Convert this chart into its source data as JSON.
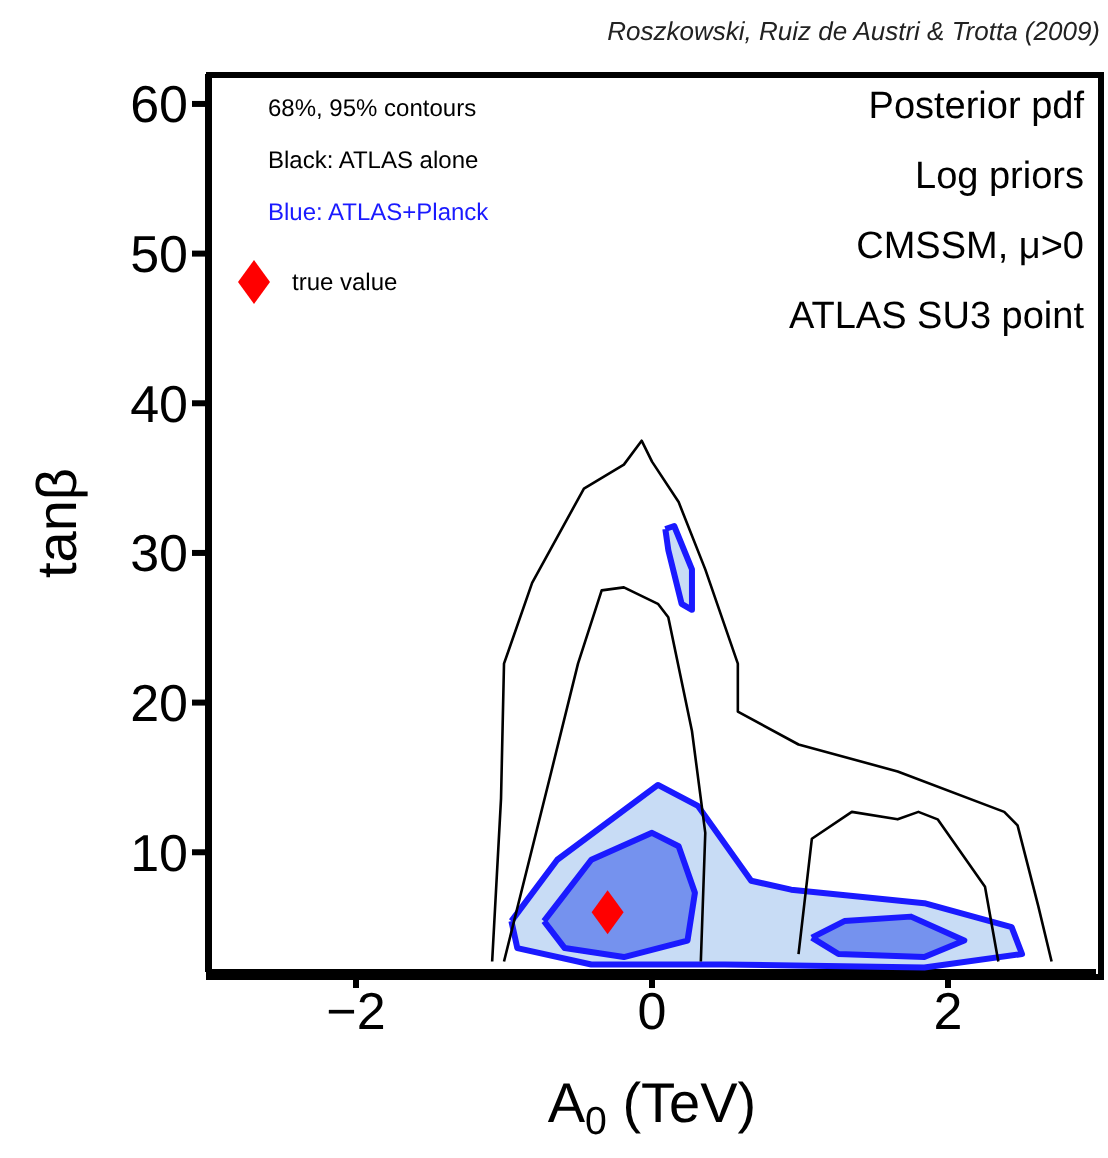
{
  "chart_data": {
    "type": "line",
    "xlabel": "A$_{0}$ (TeV)",
    "ylabel": "tanβ",
    "xlim": [
      -3,
      3
    ],
    "xticks": [
      {
        "value": -2,
        "label": "−2"
      },
      0,
      2
    ],
    "ylim": [
      2,
      62
    ],
    "yticks": [
      10,
      20,
      30,
      40,
      50,
      60
    ],
    "grid": false,
    "legend": "top left",
    "annotations": [
      "68%, 95% contours",
      "Black: ATLAS alone",
      "Blue: ATLAS+Planck",
      "Posterior pdf",
      "Log priors",
      "CMSSM, μ>0",
      "ATLAS SU3 point",
      "Roszkowski, Ruiz de Austri & Trotta (2009)"
    ],
    "series": [
      {
        "type": "area",
        "color": "#c8dcf5",
        "x": [
          -0.95,
          -0.64,
          0.04,
          0.31,
          0.67,
          0.94,
          1.84,
          2.43,
          2.5,
          1.84,
          0.49,
          -0.41,
          -0.91,
          -0.95
        ],
        "values": [
          5.4,
          9.5,
          14.5,
          13.1,
          8.1,
          7.5,
          6.6,
          5.0,
          3.2,
          2.3,
          2.5,
          2.5,
          3.6,
          5.4
        ]
      },
      {
        "type": "area",
        "color": "#c8dcf5",
        "x": [
          0.09,
          0.15,
          0.27,
          0.27,
          0.2,
          0.11,
          0.09
        ],
        "values": [
          31.6,
          31.8,
          28.9,
          26.2,
          26.6,
          30.2,
          31.6
        ]
      },
      {
        "type": "area",
        "color": "#7592ee",
        "x": [
          -0.73,
          -0.41,
          0,
          0.18,
          0.29,
          0.24,
          -0.19,
          -0.59,
          -0.73
        ],
        "values": [
          5.4,
          9.5,
          11.3,
          10.4,
          7.3,
          4.1,
          3.0,
          3.6,
          5.4
        ]
      },
      {
        "type": "area",
        "color": "#7592ee",
        "x": [
          1.08,
          1.3,
          1.75,
          2.11,
          1.84,
          1.26,
          1.08
        ],
        "values": [
          4.3,
          5.4,
          5.7,
          4.1,
          3.0,
          3.2,
          4.3
        ]
      },
      {
        "color": "#000000",
        "x": [
          -1.08,
          -1.02,
          -1.0,
          -0.81,
          -0.46,
          -0.19,
          -0.07,
          0,
          0.18,
          0.36,
          0.58,
          0.58,
          0.99,
          1.66,
          2.38,
          2.47,
          2.61,
          2.7
        ],
        "values": [
          2.7,
          13.6,
          22.6,
          28,
          34.3,
          35.9,
          37.5,
          36.1,
          33.4,
          28.9,
          22.6,
          19.4,
          17.2,
          15.4,
          12.7,
          11.8,
          6.4,
          2.7
        ]
      },
      {
        "color": "#000000",
        "x": [
          -1.0,
          -0.68,
          -0.5,
          -0.34,
          -0.19,
          0.04,
          0.11,
          0.27,
          0.36,
          0.33
        ],
        "values": [
          2.7,
          15.4,
          22.6,
          27.5,
          27.7,
          26.6,
          25.7,
          18.1,
          11.3,
          2.7
        ]
      },
      {
        "color": "#000000",
        "x": [
          0.99,
          1.08,
          1.35,
          1.66,
          1.8,
          1.93,
          2.25,
          2.34
        ],
        "values": [
          3.2,
          10.9,
          12.7,
          12.2,
          12.7,
          12.2,
          7.7,
          2.7
        ]
      },
      {
        "type": "scatter",
        "name": "true value",
        "color": "#ff0000",
        "marker": "diamond",
        "x": [
          -0.3
        ],
        "values": [
          6
        ]
      }
    ]
  }
}
